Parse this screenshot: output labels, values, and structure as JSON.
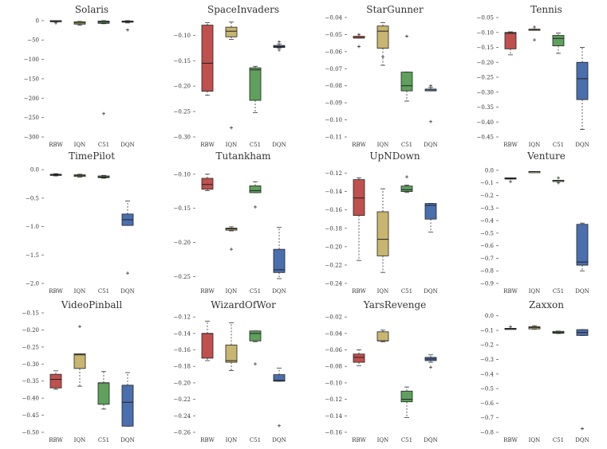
{
  "chart_data": {
    "type": "box",
    "categories": [
      "RBW",
      "IQN",
      "C51",
      "DQN"
    ],
    "colors": {
      "RBW": "#c0504d",
      "IQN": "#c8b570",
      "C51": "#5fa05d",
      "DQN": "#4a6fae"
    },
    "panels": [
      {
        "title": "Solaris",
        "ylim": [
          -300,
          8
        ],
        "yticks": [
          0,
          -50,
          -100,
          -150,
          -200,
          -250,
          -300
        ],
        "boxes": [
          {
            "q1": -2,
            "med": -1,
            "q3": 0,
            "wlo": -3,
            "whi": 0,
            "outliers": [
              -6
            ]
          },
          {
            "q1": -9,
            "med": -6,
            "q3": -3,
            "wlo": -12,
            "whi": -2,
            "outliers": []
          },
          {
            "q1": -7,
            "med": -4,
            "q3": -1,
            "wlo": -8,
            "whi": 0,
            "outliers": [
              -240
            ]
          },
          {
            "q1": -4,
            "med": -3,
            "q3": -1,
            "wlo": -6,
            "whi": 0,
            "outliers": [
              -24
            ]
          }
        ]
      },
      {
        "title": "SpaceInvaders",
        "ylim": [
          -0.3,
          -0.065
        ],
        "yticks": [
          -0.1,
          -0.15,
          -0.2,
          -0.25,
          -0.3
        ],
        "boxes": [
          {
            "q1": -0.21,
            "med": -0.155,
            "q3": -0.08,
            "wlo": -0.218,
            "whi": -0.075,
            "outliers": []
          },
          {
            "q1": -0.103,
            "med": -0.092,
            "q3": -0.084,
            "wlo": -0.108,
            "whi": -0.074,
            "outliers": [
              -0.282
            ]
          },
          {
            "q1": -0.228,
            "med": -0.168,
            "q3": -0.164,
            "wlo": -0.252,
            "whi": -0.161,
            "outliers": []
          },
          {
            "q1": -0.124,
            "med": -0.122,
            "q3": -0.12,
            "wlo": -0.125,
            "whi": -0.117,
            "outliers": [
              -0.113,
              -0.129
            ]
          }
        ]
      },
      {
        "title": "StarGunner",
        "ylim": [
          -0.11,
          -0.04
        ],
        "yticks": [
          -0.04,
          -0.05,
          -0.06,
          -0.07,
          -0.08,
          -0.09,
          -0.1,
          -0.11
        ],
        "boxes": [
          {
            "q1": -0.052,
            "med": -0.052,
            "q3": -0.051,
            "wlo": -0.052,
            "whi": -0.051,
            "outliers": [
              -0.05,
              -0.057
            ]
          },
          {
            "q1": -0.058,
            "med": -0.048,
            "q3": -0.045,
            "wlo": -0.068,
            "whi": -0.043,
            "outliers": [
              -0.063
            ]
          },
          {
            "q1": -0.083,
            "med": -0.08,
            "q3": -0.072,
            "wlo": -0.089,
            "whi": -0.072,
            "outliers": [
              -0.051
            ]
          },
          {
            "q1": -0.083,
            "med": -0.082,
            "q3": -0.082,
            "wlo": -0.083,
            "whi": -0.081,
            "outliers": [
              -0.08,
              -0.101
            ]
          }
        ]
      },
      {
        "title": "Tennis",
        "ylim": [
          -0.45,
          -0.05
        ],
        "yticks": [
          -0.05,
          -0.1,
          -0.15,
          -0.2,
          -0.25,
          -0.3,
          -0.35,
          -0.4,
          -0.45
        ],
        "boxes": [
          {
            "q1": -0.155,
            "med": -0.103,
            "q3": -0.1,
            "wlo": -0.175,
            "whi": -0.098,
            "outliers": []
          },
          {
            "q1": -0.091,
            "med": -0.09,
            "q3": -0.089,
            "wlo": -0.091,
            "whi": -0.089,
            "outliers": [
              -0.082,
              -0.125
            ]
          },
          {
            "q1": -0.145,
            "med": -0.12,
            "q3": -0.11,
            "wlo": -0.17,
            "whi": -0.102,
            "outliers": []
          },
          {
            "q1": -0.325,
            "med": -0.255,
            "q3": -0.2,
            "wlo": -0.425,
            "whi": -0.15,
            "outliers": []
          }
        ]
      },
      {
        "title": "TimePilot",
        "ylim": [
          -2.0,
          0.1
        ],
        "yticks": [
          0.0,
          -0.5,
          -1.0,
          -1.5,
          -2.0
        ],
        "boxes": [
          {
            "q1": -0.1,
            "med": -0.09,
            "q3": -0.08,
            "wlo": -0.11,
            "whi": -0.07,
            "outliers": []
          },
          {
            "q1": -0.12,
            "med": -0.1,
            "q3": -0.09,
            "wlo": -0.13,
            "whi": -0.08,
            "outliers": []
          },
          {
            "q1": -0.14,
            "med": -0.13,
            "q3": -0.11,
            "wlo": -0.15,
            "whi": -0.1,
            "outliers": []
          },
          {
            "q1": -0.98,
            "med": -0.88,
            "q3": -0.78,
            "wlo": -0.98,
            "whi": -0.55,
            "outliers": [
              -1.82
            ]
          }
        ]
      },
      {
        "title": "Tutankham",
        "ylim": [
          -0.26,
          -0.085
        ],
        "yticks": [
          -0.1,
          -0.15,
          -0.2,
          -0.25
        ],
        "boxes": [
          {
            "q1": -0.122,
            "med": -0.115,
            "q3": -0.106,
            "wlo": -0.124,
            "whi": -0.1,
            "outliers": []
          },
          {
            "q1": -0.182,
            "med": -0.18,
            "q3": -0.179,
            "wlo": -0.183,
            "whi": -0.177,
            "outliers": [
              -0.21
            ]
          },
          {
            "q1": -0.127,
            "med": -0.124,
            "q3": -0.117,
            "wlo": -0.127,
            "whi": -0.111,
            "outliers": [
              -0.148
            ]
          },
          {
            "q1": -0.244,
            "med": -0.24,
            "q3": -0.21,
            "wlo": -0.253,
            "whi": -0.178,
            "outliers": []
          }
        ]
      },
      {
        "title": "UpNDown",
        "ylim": [
          -0.24,
          -0.11
        ],
        "yticks": [
          -0.12,
          -0.14,
          -0.16,
          -0.18,
          -0.2,
          -0.22,
          -0.24
        ],
        "boxes": [
          {
            "q1": -0.166,
            "med": -0.147,
            "q3": -0.127,
            "wlo": -0.215,
            "whi": -0.125,
            "outliers": []
          },
          {
            "q1": -0.21,
            "med": -0.192,
            "q3": -0.162,
            "wlo": -0.228,
            "whi": -0.137,
            "outliers": []
          },
          {
            "q1": -0.14,
            "med": -0.138,
            "q3": -0.134,
            "wlo": -0.141,
            "whi": -0.133,
            "outliers": [
              -0.124
            ]
          },
          {
            "q1": -0.17,
            "med": -0.155,
            "q3": -0.153,
            "wlo": -0.184,
            "whi": -0.153,
            "outliers": []
          }
        ]
      },
      {
        "title": "Venture",
        "ylim": [
          -0.9,
          0.05
        ],
        "yticks": [
          0.0,
          -0.1,
          -0.2,
          -0.3,
          -0.4,
          -0.5,
          -0.6,
          -0.7,
          -0.8,
          -0.9
        ],
        "boxes": [
          {
            "q1": -0.07,
            "med": -0.065,
            "q3": -0.06,
            "wlo": -0.07,
            "whi": -0.06,
            "outliers": [
              -0.09
            ]
          },
          {
            "q1": -0.01,
            "med": -0.01,
            "q3": -0.01,
            "wlo": -0.01,
            "whi": -0.01,
            "outliers": []
          },
          {
            "q1": -0.08,
            "med": -0.08,
            "q3": -0.08,
            "wlo": -0.08,
            "whi": -0.08,
            "outliers": [
              -0.06,
              -0.1
            ]
          },
          {
            "q1": -0.755,
            "med": -0.73,
            "q3": -0.43,
            "wlo": -0.8,
            "whi": -0.42,
            "outliers": []
          }
        ]
      },
      {
        "title": "VideoPinball",
        "ylim": [
          -0.5,
          -0.15
        ],
        "yticks": [
          -0.15,
          -0.2,
          -0.25,
          -0.3,
          -0.35,
          -0.4,
          -0.45,
          -0.5
        ],
        "boxes": [
          {
            "q1": -0.37,
            "med": -0.345,
            "q3": -0.33,
            "wlo": -0.374,
            "whi": -0.32,
            "outliers": []
          },
          {
            "q1": -0.313,
            "med": -0.273,
            "q3": -0.27,
            "wlo": -0.365,
            "whi": -0.27,
            "outliers": [
              -0.19
            ]
          },
          {
            "q1": -0.418,
            "med": -0.355,
            "q3": -0.355,
            "wlo": -0.432,
            "whi": -0.322,
            "outliers": []
          },
          {
            "q1": -0.482,
            "med": -0.412,
            "q3": -0.362,
            "wlo": -0.482,
            "whi": -0.325,
            "outliers": []
          }
        ]
      },
      {
        "title": "WizardOfWor",
        "ylim": [
          -0.26,
          -0.115
        ],
        "yticks": [
          -0.12,
          -0.14,
          -0.16,
          -0.18,
          -0.2,
          -0.22,
          -0.24,
          -0.26
        ],
        "boxes": [
          {
            "q1": -0.17,
            "med": -0.14,
            "q3": -0.14,
            "wlo": -0.173,
            "whi": -0.125,
            "outliers": []
          },
          {
            "q1": -0.175,
            "med": -0.173,
            "q3": -0.154,
            "wlo": -0.185,
            "whi": -0.127,
            "outliers": []
          },
          {
            "q1": -0.149,
            "med": -0.14,
            "q3": -0.137,
            "wlo": -0.15,
            "whi": -0.137,
            "outliers": [
              -0.177
            ]
          },
          {
            "q1": -0.198,
            "med": -0.197,
            "q3": -0.19,
            "wlo": -0.198,
            "whi": -0.182,
            "outliers": [
              -0.252
            ]
          }
        ]
      },
      {
        "title": "YarsRevenge",
        "ylim": [
          -0.16,
          -0.015
        ],
        "yticks": [
          -0.02,
          -0.04,
          -0.06,
          -0.08,
          -0.1,
          -0.12,
          -0.14,
          -0.16
        ],
        "boxes": [
          {
            "q1": -0.075,
            "med": -0.069,
            "q3": -0.065,
            "wlo": -0.079,
            "whi": -0.06,
            "outliers": []
          },
          {
            "q1": -0.049,
            "med": -0.049,
            "q3": -0.038,
            "wlo": -0.05,
            "whi": -0.036,
            "outliers": []
          },
          {
            "q1": -0.123,
            "med": -0.12,
            "q3": -0.11,
            "wlo": -0.142,
            "whi": -0.105,
            "outliers": []
          },
          {
            "q1": -0.073,
            "med": -0.071,
            "q3": -0.069,
            "wlo": -0.075,
            "whi": -0.066,
            "outliers": [
              -0.081
            ]
          }
        ]
      },
      {
        "title": "Zaxxon",
        "ylim": [
          -0.8,
          0.02
        ],
        "yticks": [
          0.0,
          -0.1,
          -0.2,
          -0.3,
          -0.4,
          -0.5,
          -0.6,
          -0.7,
          -0.8
        ],
        "boxes": [
          {
            "q1": -0.09,
            "med": -0.088,
            "q3": -0.086,
            "wlo": -0.09,
            "whi": -0.086,
            "outliers": [
              -0.075
            ]
          },
          {
            "q1": -0.09,
            "med": -0.08,
            "q3": -0.075,
            "wlo": -0.092,
            "whi": -0.068,
            "outliers": []
          },
          {
            "q1": -0.12,
            "med": -0.115,
            "q3": -0.107,
            "wlo": -0.122,
            "whi": -0.105,
            "outliers": []
          },
          {
            "q1": -0.135,
            "med": -0.115,
            "q3": -0.095,
            "wlo": -0.135,
            "whi": -0.095,
            "outliers": [
              -0.775
            ]
          }
        ]
      }
    ]
  }
}
